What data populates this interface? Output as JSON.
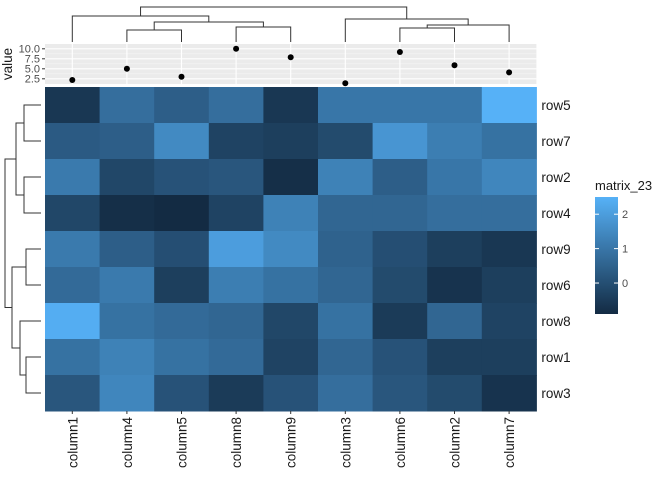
{
  "chart_data": {
    "type": "heatmap",
    "title": "",
    "columns": [
      "column1",
      "column4",
      "column5",
      "column8",
      "column9",
      "column3",
      "column6",
      "column2",
      "column7"
    ],
    "rows": [
      "row5",
      "row7",
      "row2",
      "row4",
      "row9",
      "row6",
      "row8",
      "row1",
      "row3"
    ],
    "values": [
      [
        -0.6,
        0.8,
        0.4,
        0.8,
        -0.6,
        1.0,
        1.0,
        1.0,
        2.5
      ],
      [
        0.3,
        0.4,
        1.5,
        -0.3,
        -0.4,
        -0.1,
        1.8,
        1.2,
        0.9
      ],
      [
        1.1,
        -0.2,
        0.1,
        0.2,
        -0.8,
        1.3,
        0.4,
        1.0,
        1.4
      ],
      [
        -0.2,
        -0.8,
        -0.9,
        -0.3,
        1.3,
        0.6,
        0.6,
        0.8,
        0.8
      ],
      [
        1.1,
        0.4,
        0.0,
        2.0,
        1.5,
        0.5,
        0.0,
        -0.4,
        -0.6
      ],
      [
        0.7,
        1.1,
        -0.4,
        1.2,
        0.9,
        0.6,
        -0.1,
        -0.7,
        -0.4
      ],
      [
        2.4,
        0.9,
        0.7,
        0.6,
        -0.2,
        0.9,
        -0.5,
        0.6,
        -0.3
      ],
      [
        0.9,
        1.3,
        0.9,
        0.7,
        -0.3,
        0.6,
        0.1,
        -0.4,
        -0.4
      ],
      [
        0.2,
        1.4,
        0.1,
        -0.5,
        0.1,
        0.8,
        0.2,
        -0.1,
        -0.7
      ]
    ],
    "top_annotation": {
      "ylabel": "value",
      "ticks": [
        "2.5",
        "5.0",
        "7.5",
        "10.0"
      ],
      "tick_values": [
        2.5,
        5.0,
        7.5,
        10.0
      ],
      "ylim": [
        1.2,
        11.2
      ],
      "points": [
        2.2,
        5.0,
        3.0,
        10.0,
        7.9,
        1.4,
        9.2,
        5.9,
        4.1
      ]
    },
    "legend": {
      "title": "matrix_23",
      "ticks": [
        "2",
        "1",
        "0"
      ],
      "tick_values": [
        2,
        1,
        0
      ],
      "range": [
        -0.9,
        2.5
      ],
      "low_color": "#132B43",
      "high_color": "#56B1F7"
    },
    "row_dendrogram": true,
    "column_dendrogram": true,
    "grid": true
  }
}
